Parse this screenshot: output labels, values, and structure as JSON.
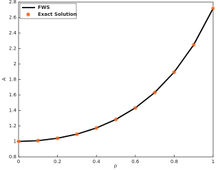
{
  "chart_data": {
    "type": "line",
    "x": [
      0,
      0.1,
      0.2,
      0.3,
      0.4,
      0.5,
      0.6,
      0.7,
      0.8,
      0.9,
      1
    ],
    "series": [
      {
        "name": "FWS",
        "color": "#000000",
        "style": "line",
        "values": [
          1,
          1.01,
          1.041,
          1.094,
          1.174,
          1.284,
          1.433,
          1.632,
          1.896,
          2.248,
          2.718
        ]
      },
      {
        "name": "Exact Solution",
        "color": "#e8601c",
        "style": "marker",
        "values": [
          1,
          1.01,
          1.041,
          1.094,
          1.174,
          1.284,
          1.433,
          1.632,
          1.896,
          2.248,
          2.718
        ]
      }
    ],
    "xlabel": "ρ",
    "ylabel": "A",
    "xlim": [
      0,
      1
    ],
    "xticks": [
      0,
      0.2,
      0.4,
      0.6,
      0.8,
      1
    ],
    "ylim": [
      0.8,
      2.8
    ],
    "yticks": [
      0.8,
      1,
      1.2,
      1.4,
      1.6,
      1.8,
      2,
      2.2,
      2.4,
      2.6,
      2.8
    ],
    "legend": "upper-left"
  }
}
